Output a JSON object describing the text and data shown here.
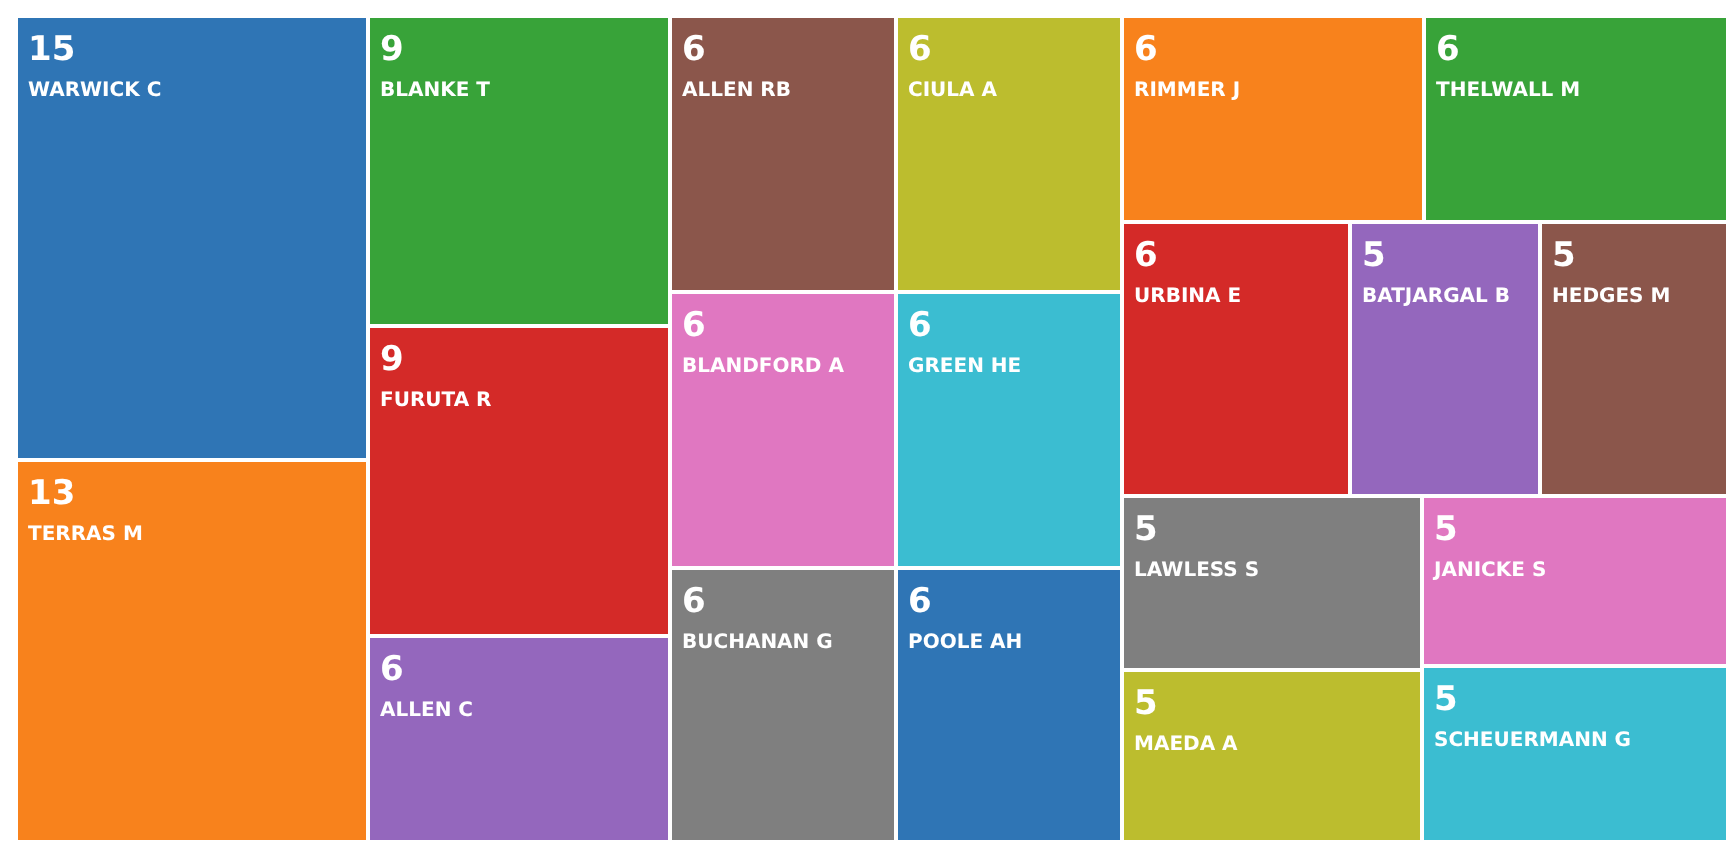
{
  "chart_data": {
    "type": "other",
    "categories": [
      "WARWICK C",
      "TERRAS M",
      "BLANKE T",
      "FURUTA R",
      "ALLEN C",
      "ALLEN RB",
      "BLANDFORD A",
      "BUCHANAN G",
      "CIULA A",
      "GREEN HE",
      "POOLE AH",
      "RIMMER J",
      "THELWALL M",
      "URBINA E",
      "BATJARGAL B",
      "HEDGES M",
      "LAWLESS S",
      "MAEDA A",
      "JANICKE S",
      "SCHEUERMANN G"
    ],
    "values": [
      15,
      13,
      9,
      9,
      6,
      6,
      6,
      6,
      6,
      6,
      6,
      6,
      6,
      6,
      5,
      5,
      5,
      5,
      5,
      5
    ],
    "colors": [
      "#2f75b5",
      "#f8821c",
      "#38a339",
      "#d42a28",
      "#9467bd",
      "#8b564b",
      "#e077c1",
      "#7f7f7f",
      "#bcbd2e",
      "#3bbdd1",
      "#2f75b5",
      "#f8821c",
      "#38a339",
      "#d42a28",
      "#9467bd",
      "#8b564b",
      "#7f7f7f",
      "#bcbd2e",
      "#e077c1",
      "#3bbdd1"
    ],
    "data_labels": true
  }
}
